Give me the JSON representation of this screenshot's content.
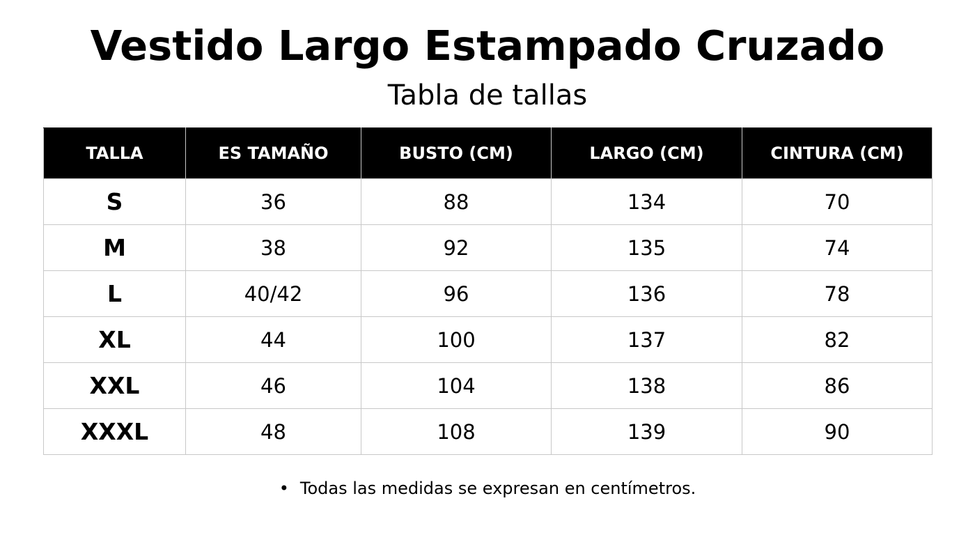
{
  "header": {
    "title": "Vestido Largo Estampado Cruzado",
    "subtitle": "Tabla de tallas"
  },
  "table": {
    "columns": [
      "TALLA",
      "ES TAMAÑO",
      "BUSTO (CM)",
      "LARGO (CM)",
      "CINTURA (CM)"
    ],
    "rows": [
      [
        "S",
        36,
        88,
        134,
        70
      ],
      [
        "M",
        38,
        92,
        135,
        74
      ],
      [
        "L",
        "40/42",
        96,
        136,
        78
      ],
      [
        "XL",
        44,
        100,
        137,
        82
      ],
      [
        "XXL",
        46,
        104,
        138,
        86
      ],
      [
        "XXXL",
        48,
        108,
        139,
        90
      ]
    ]
  },
  "note": "Todas las medidas se expresan en centímetros."
}
